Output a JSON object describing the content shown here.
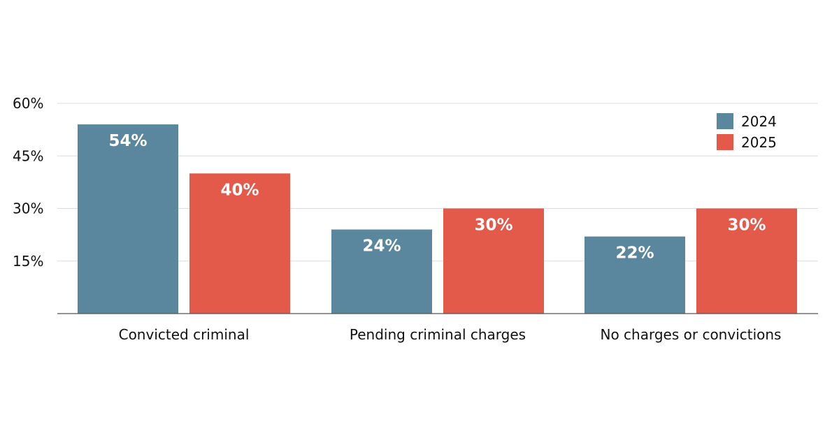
{
  "chart_data": {
    "type": "bar",
    "categories": [
      "Convicted criminal",
      "Pending criminal charges",
      "No charges or convictions"
    ],
    "series": [
      {
        "name": "2024",
        "color": "#5a879e",
        "values": [
          54,
          24,
          22
        ],
        "labels": [
          "54%",
          "24%",
          "22%"
        ]
      },
      {
        "name": "2025",
        "color": "#e3594a",
        "values": [
          40,
          30,
          30
        ],
        "labels": [
          "40%",
          "30%",
          "30%"
        ]
      }
    ],
    "ylim": [
      0,
      60
    ],
    "yticks": [
      15,
      30,
      45,
      60
    ],
    "ytick_labels": [
      "15%",
      "30%",
      "45%",
      "60%"
    ],
    "grid": true,
    "legend": "top-right"
  }
}
